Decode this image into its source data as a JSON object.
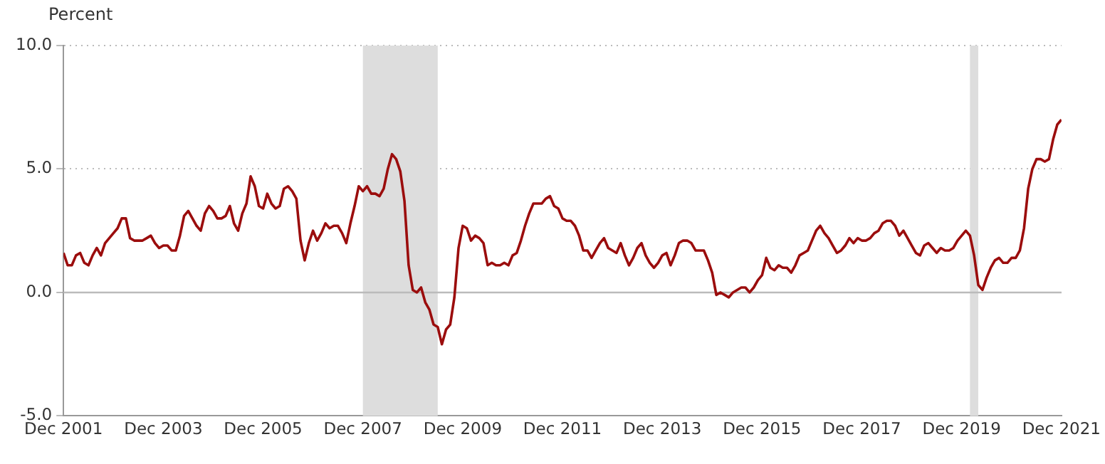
{
  "chart_data": {
    "type": "line",
    "ylabel": "Percent",
    "x": [
      "2001-12",
      "2002-01",
      "2002-02",
      "2002-03",
      "2002-04",
      "2002-05",
      "2002-06",
      "2002-07",
      "2002-08",
      "2002-09",
      "2002-10",
      "2002-11",
      "2002-12",
      "2003-01",
      "2003-02",
      "2003-03",
      "2003-04",
      "2003-05",
      "2003-06",
      "2003-07",
      "2003-08",
      "2003-09",
      "2003-10",
      "2003-11",
      "2003-12",
      "2004-01",
      "2004-02",
      "2004-03",
      "2004-04",
      "2004-05",
      "2004-06",
      "2004-07",
      "2004-08",
      "2004-09",
      "2004-10",
      "2004-11",
      "2004-12",
      "2005-01",
      "2005-02",
      "2005-03",
      "2005-04",
      "2005-05",
      "2005-06",
      "2005-07",
      "2005-08",
      "2005-09",
      "2005-10",
      "2005-11",
      "2005-12",
      "2006-01",
      "2006-02",
      "2006-03",
      "2006-04",
      "2006-05",
      "2006-06",
      "2006-07",
      "2006-08",
      "2006-09",
      "2006-10",
      "2006-11",
      "2006-12",
      "2007-01",
      "2007-02",
      "2007-03",
      "2007-04",
      "2007-05",
      "2007-06",
      "2007-07",
      "2007-08",
      "2007-09",
      "2007-10",
      "2007-11",
      "2007-12",
      "2008-01",
      "2008-02",
      "2008-03",
      "2008-04",
      "2008-05",
      "2008-06",
      "2008-07",
      "2008-08",
      "2008-09",
      "2008-10",
      "2008-11",
      "2008-12",
      "2009-01",
      "2009-02",
      "2009-03",
      "2009-04",
      "2009-05",
      "2009-06",
      "2009-07",
      "2009-08",
      "2009-09",
      "2009-10",
      "2009-11",
      "2009-12",
      "2010-01",
      "2010-02",
      "2010-03",
      "2010-04",
      "2010-05",
      "2010-06",
      "2010-07",
      "2010-08",
      "2010-09",
      "2010-10",
      "2010-11",
      "2010-12",
      "2011-01",
      "2011-02",
      "2011-03",
      "2011-04",
      "2011-05",
      "2011-06",
      "2011-07",
      "2011-08",
      "2011-09",
      "2011-10",
      "2011-11",
      "2011-12",
      "2012-01",
      "2012-02",
      "2012-03",
      "2012-04",
      "2012-05",
      "2012-06",
      "2012-07",
      "2012-08",
      "2012-09",
      "2012-10",
      "2012-11",
      "2012-12",
      "2013-01",
      "2013-02",
      "2013-03",
      "2013-04",
      "2013-05",
      "2013-06",
      "2013-07",
      "2013-08",
      "2013-09",
      "2013-10",
      "2013-11",
      "2013-12",
      "2014-01",
      "2014-02",
      "2014-03",
      "2014-04",
      "2014-05",
      "2014-06",
      "2014-07",
      "2014-08",
      "2014-09",
      "2014-10",
      "2014-11",
      "2014-12",
      "2015-01",
      "2015-02",
      "2015-03",
      "2015-04",
      "2015-05",
      "2015-06",
      "2015-07",
      "2015-08",
      "2015-09",
      "2015-10",
      "2015-11",
      "2015-12",
      "2016-01",
      "2016-02",
      "2016-03",
      "2016-04",
      "2016-05",
      "2016-06",
      "2016-07",
      "2016-08",
      "2016-09",
      "2016-10",
      "2016-11",
      "2016-12",
      "2017-01",
      "2017-02",
      "2017-03",
      "2017-04",
      "2017-05",
      "2017-06",
      "2017-07",
      "2017-08",
      "2017-09",
      "2017-10",
      "2017-11",
      "2017-12",
      "2018-01",
      "2018-02",
      "2018-03",
      "2018-04",
      "2018-05",
      "2018-06",
      "2018-07",
      "2018-08",
      "2018-09",
      "2018-10",
      "2018-11",
      "2018-12",
      "2019-01",
      "2019-02",
      "2019-03",
      "2019-04",
      "2019-05",
      "2019-06",
      "2019-07",
      "2019-08",
      "2019-09",
      "2019-10",
      "2019-11",
      "2019-12",
      "2020-01",
      "2020-02",
      "2020-03",
      "2020-04",
      "2020-05",
      "2020-06",
      "2020-07",
      "2020-08",
      "2020-09",
      "2020-10",
      "2020-11",
      "2020-12",
      "2021-01",
      "2021-02",
      "2021-03",
      "2021-04",
      "2021-05",
      "2021-06",
      "2021-07",
      "2021-08",
      "2021-09",
      "2021-10",
      "2021-11",
      "2021-12"
    ],
    "series": [
      {
        "color": "#9b0d0d",
        "values": [
          1.6,
          1.1,
          1.1,
          1.5,
          1.6,
          1.2,
          1.1,
          1.5,
          1.8,
          1.5,
          2.0,
          2.2,
          2.4,
          2.6,
          3.0,
          3.0,
          2.2,
          2.1,
          2.1,
          2.1,
          2.2,
          2.3,
          2.0,
          1.8,
          1.9,
          1.9,
          1.7,
          1.7,
          2.3,
          3.1,
          3.3,
          3.0,
          2.7,
          2.5,
          3.2,
          3.5,
          3.3,
          3.0,
          3.0,
          3.1,
          3.5,
          2.8,
          2.5,
          3.2,
          3.6,
          4.7,
          4.3,
          3.5,
          3.4,
          4.0,
          3.6,
          3.4,
          3.5,
          4.2,
          4.3,
          4.1,
          3.8,
          2.1,
          1.3,
          2.0,
          2.5,
          2.1,
          2.4,
          2.8,
          2.6,
          2.7,
          2.7,
          2.4,
          2.0,
          2.8,
          3.5,
          4.3,
          4.1,
          4.3,
          4.0,
          4.0,
          3.9,
          4.2,
          5.0,
          5.6,
          5.4,
          4.9,
          3.7,
          1.1,
          0.1,
          0.0,
          0.2,
          -0.4,
          -0.7,
          -1.3,
          -1.4,
          -2.1,
          -1.5,
          -1.3,
          -0.2,
          1.8,
          2.7,
          2.6,
          2.1,
          2.3,
          2.2,
          2.0,
          1.1,
          1.2,
          1.1,
          1.1,
          1.2,
          1.1,
          1.5,
          1.6,
          2.1,
          2.7,
          3.2,
          3.6,
          3.6,
          3.6,
          3.8,
          3.9,
          3.5,
          3.4,
          3.0,
          2.9,
          2.9,
          2.7,
          2.3,
          1.7,
          1.7,
          1.4,
          1.7,
          2.0,
          2.2,
          1.8,
          1.7,
          1.6,
          2.0,
          1.5,
          1.1,
          1.4,
          1.8,
          2.0,
          1.5,
          1.2,
          1.0,
          1.2,
          1.5,
          1.6,
          1.1,
          1.5,
          2.0,
          2.1,
          2.1,
          2.0,
          1.7,
          1.7,
          1.7,
          1.3,
          0.8,
          -0.1,
          0.0,
          -0.1,
          -0.2,
          0.0,
          0.1,
          0.2,
          0.2,
          0.0,
          0.2,
          0.5,
          0.7,
          1.4,
          1.0,
          0.9,
          1.1,
          1.0,
          1.0,
          0.8,
          1.1,
          1.5,
          1.6,
          1.7,
          2.1,
          2.5,
          2.7,
          2.4,
          2.2,
          1.9,
          1.6,
          1.7,
          1.9,
          2.2,
          2.0,
          2.2,
          2.1,
          2.1,
          2.2,
          2.4,
          2.5,
          2.8,
          2.9,
          2.9,
          2.7,
          2.3,
          2.5,
          2.2,
          1.9,
          1.6,
          1.5,
          1.9,
          2.0,
          1.8,
          1.6,
          1.8,
          1.7,
          1.7,
          1.8,
          2.1,
          2.3,
          2.5,
          2.3,
          1.5,
          0.3,
          0.1,
          0.6,
          1.0,
          1.3,
          1.4,
          1.2,
          1.2,
          1.4,
          1.4,
          1.7,
          2.6,
          4.2,
          5.0,
          5.4,
          5.4,
          5.3,
          5.4,
          6.2,
          6.8,
          7.0
        ]
      }
    ],
    "xlim": [
      "2001-12",
      "2021-12"
    ],
    "xticks": [
      {
        "value": "2001-12",
        "label": "Dec 2001"
      },
      {
        "value": "2003-12",
        "label": "Dec 2003"
      },
      {
        "value": "2005-12",
        "label": "Dec 2005"
      },
      {
        "value": "2007-12",
        "label": "Dec 2007"
      },
      {
        "value": "2009-12",
        "label": "Dec 2009"
      },
      {
        "value": "2011-12",
        "label": "Dec 2011"
      },
      {
        "value": "2013-12",
        "label": "Dec 2013"
      },
      {
        "value": "2015-12",
        "label": "Dec 2015"
      },
      {
        "value": "2017-12",
        "label": "Dec 2017"
      },
      {
        "value": "2019-12",
        "label": "Dec 2019"
      },
      {
        "value": "2021-12",
        "label": "Dec 2021"
      }
    ],
    "ylim": [
      -5,
      10
    ],
    "yticks": [
      {
        "value": -5,
        "label": "-5.0"
      },
      {
        "value": 0,
        "label": "0.0"
      },
      {
        "value": 5,
        "label": "5.0"
      },
      {
        "value": 10,
        "label": "10.0"
      }
    ],
    "bands": [
      {
        "axis": "x",
        "from": "2007-12",
        "to": "2009-06",
        "color": "#dddddd"
      },
      {
        "axis": "x",
        "from": "2020-02",
        "to": "2020-04",
        "color": "#dddddd"
      }
    ],
    "ref_lines": [
      {
        "axis": "y",
        "value": 0,
        "color": "#bbbbbb"
      }
    ],
    "grid": "y",
    "legend": false,
    "marker": "none",
    "line_style": "solid"
  }
}
